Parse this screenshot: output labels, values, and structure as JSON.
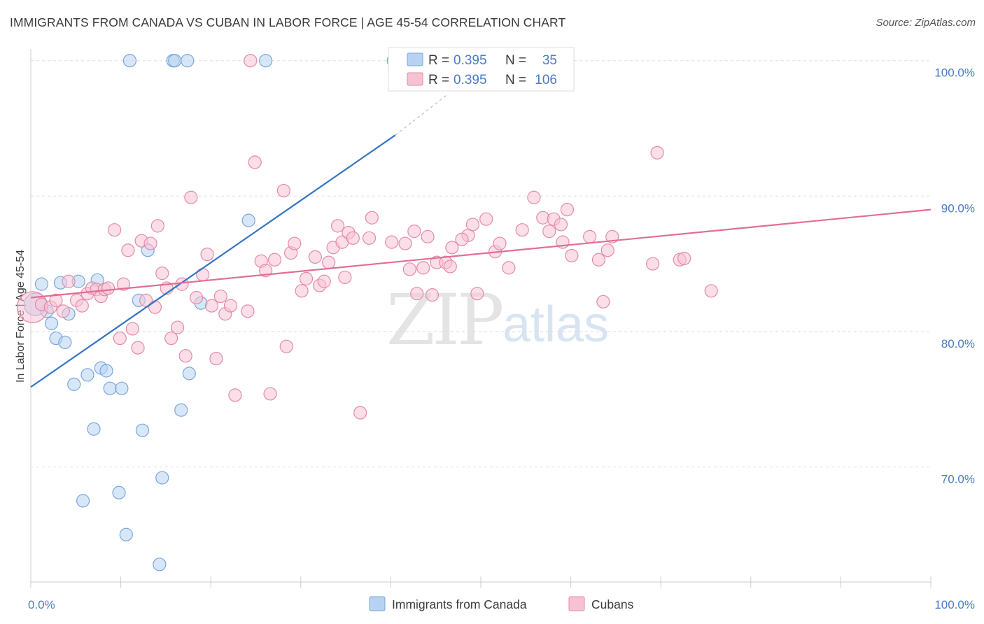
{
  "title": "IMMIGRANTS FROM CANADA VS CUBAN IN LABOR FORCE | AGE 45-54 CORRELATION CHART",
  "source": "Source: ZipAtlas.com",
  "watermark": {
    "zip": "ZIP",
    "atlas": "atlas"
  },
  "colors": {
    "blue_fill": "#b8d3f2",
    "blue_stroke": "#7aa6dc",
    "blue_line": "#3474c4",
    "pink_fill": "#f7c3d3",
    "pink_stroke": "#e58aaa",
    "pink_line": "#e26d98",
    "tick_text": "#4a7bc8",
    "grid": "#dddddd"
  },
  "legend_top": [
    {
      "r_label": "R =",
      "r_value": "0.395",
      "n_label": "N =",
      "n_value": "35",
      "series": "canada"
    },
    {
      "r_label": "R =",
      "r_value": "0.395",
      "n_label": "N =",
      "n_value": "106",
      "series": "cubans"
    }
  ],
  "chart_data": {
    "type": "scatter",
    "title": "IMMIGRANTS FROM CANADA VS CUBAN IN LABOR FORCE | AGE 45-54 CORRELATION CHART",
    "xlabel": "",
    "ylabel": "In Labor Force | Age 45-54",
    "xlim": [
      0,
      100
    ],
    "ylim": [
      61.5,
      102
    ],
    "x_tick_labels": [
      {
        "value": 0,
        "label": "0.0%"
      },
      {
        "value": 100,
        "label": "100.0%"
      }
    ],
    "y_ticks": [
      {
        "value": 70,
        "label": "70.0%"
      },
      {
        "value": 80,
        "label": "80.0%"
      },
      {
        "value": 90,
        "label": "90.0%"
      },
      {
        "value": 100,
        "label": "100.0%"
      }
    ],
    "grid": "horizontal dashed",
    "legend": "bottom-center",
    "series": [
      {
        "name": "Immigrants from Canada",
        "key": "canada",
        "r": 0.395,
        "n": 35,
        "trend": {
          "x0": 0,
          "y0": 75.9,
          "x1": 40.5,
          "y1": 94.5,
          "dash_to_x": 46.3,
          "dash_to_y": 97.5
        },
        "points": [
          [
            0.5,
            82.0,
            16
          ],
          [
            1.2,
            83.5,
            9
          ],
          [
            1.8,
            81.5,
            9
          ],
          [
            2.3,
            80.6,
            9
          ],
          [
            2.8,
            79.5,
            9
          ],
          [
            3.3,
            83.6,
            9
          ],
          [
            3.8,
            79.2,
            9
          ],
          [
            4.2,
            81.3,
            9
          ],
          [
            4.8,
            76.1,
            9
          ],
          [
            5.3,
            83.7,
            9
          ],
          [
            6.3,
            76.8,
            9
          ],
          [
            7.0,
            72.8,
            9
          ],
          [
            7.4,
            83.8,
            9
          ],
          [
            7.8,
            77.3,
            9
          ],
          [
            8.4,
            77.1,
            9
          ],
          [
            8.8,
            75.8,
            9
          ],
          [
            9.8,
            68.1,
            9
          ],
          [
            10.1,
            75.8,
            9
          ],
          [
            10.6,
            65.0,
            9
          ],
          [
            12.0,
            82.3,
            9
          ],
          [
            12.4,
            72.7,
            9
          ],
          [
            13.0,
            86.0,
            9
          ],
          [
            14.3,
            62.8,
            9
          ],
          [
            14.6,
            69.2,
            9
          ],
          [
            16.7,
            74.2,
            9
          ],
          [
            17.6,
            76.9,
            9
          ],
          [
            18.9,
            82.1,
            9
          ],
          [
            24.2,
            88.2,
            9
          ],
          [
            5.8,
            67.5,
            9
          ],
          [
            11.0,
            100.0,
            9
          ],
          [
            15.8,
            100.0,
            9
          ],
          [
            17.4,
            100.0,
            9
          ],
          [
            26.1,
            100.0,
            9
          ],
          [
            40.3,
            100.0,
            9
          ],
          [
            16.0,
            100.0,
            9
          ]
        ]
      },
      {
        "name": "Cubans",
        "key": "cubans",
        "r": 0.395,
        "n": 106,
        "trend": {
          "x0": 0,
          "y0": 82.5,
          "x1": 100,
          "y1": 89.0
        },
        "points": [
          [
            0.2,
            81.8,
            22
          ],
          [
            1.2,
            82.0,
            9
          ],
          [
            2.2,
            81.8,
            9
          ],
          [
            2.8,
            82.3,
            9
          ],
          [
            3.6,
            81.5,
            9
          ],
          [
            4.2,
            83.7,
            9
          ],
          [
            5.1,
            82.3,
            9
          ],
          [
            5.7,
            81.9,
            9
          ],
          [
            6.3,
            82.8,
            9
          ],
          [
            6.8,
            83.2,
            9
          ],
          [
            7.3,
            83.1,
            9
          ],
          [
            7.8,
            82.6,
            9
          ],
          [
            8.2,
            83.1,
            9
          ],
          [
            8.6,
            83.2,
            9
          ],
          [
            9.3,
            87.5,
            9
          ],
          [
            9.9,
            79.5,
            9
          ],
          [
            10.3,
            83.5,
            9
          ],
          [
            10.8,
            86.0,
            9
          ],
          [
            11.3,
            80.2,
            9
          ],
          [
            11.9,
            78.8,
            9
          ],
          [
            12.3,
            86.7,
            9
          ],
          [
            12.8,
            82.3,
            9
          ],
          [
            13.3,
            86.5,
            9
          ],
          [
            13.8,
            81.8,
            9
          ],
          [
            14.1,
            87.8,
            9
          ],
          [
            14.6,
            84.3,
            9
          ],
          [
            15.1,
            83.2,
            9
          ],
          [
            15.6,
            79.5,
            9
          ],
          [
            16.3,
            80.3,
            9
          ],
          [
            16.8,
            83.5,
            9
          ],
          [
            17.2,
            78.2,
            9
          ],
          [
            17.8,
            89.9,
            9
          ],
          [
            18.4,
            82.5,
            9
          ],
          [
            19.1,
            84.2,
            9
          ],
          [
            19.6,
            85.7,
            9
          ],
          [
            20.1,
            81.9,
            9
          ],
          [
            20.6,
            78.0,
            9
          ],
          [
            21.1,
            82.6,
            9
          ],
          [
            21.6,
            81.3,
            9
          ],
          [
            22.2,
            81.9,
            9
          ],
          [
            22.7,
            75.3,
            9
          ],
          [
            24.1,
            81.5,
            9
          ],
          [
            24.4,
            100.0,
            9
          ],
          [
            24.9,
            92.5,
            9
          ],
          [
            25.6,
            85.2,
            9
          ],
          [
            26.1,
            84.5,
            9
          ],
          [
            26.6,
            75.4,
            9
          ],
          [
            27.1,
            85.3,
            9
          ],
          [
            28.1,
            90.4,
            9
          ],
          [
            28.4,
            78.9,
            9
          ],
          [
            28.9,
            85.8,
            9
          ],
          [
            29.3,
            86.5,
            9
          ],
          [
            30.1,
            83.0,
            9
          ],
          [
            30.6,
            83.9,
            9
          ],
          [
            31.6,
            85.5,
            9
          ],
          [
            32.1,
            83.4,
            9
          ],
          [
            32.6,
            83.7,
            9
          ],
          [
            33.6,
            86.2,
            9
          ],
          [
            34.1,
            87.8,
            9
          ],
          [
            34.6,
            86.6,
            9
          ],
          [
            35.3,
            87.3,
            9
          ],
          [
            35.8,
            86.9,
            9
          ],
          [
            36.6,
            74.0,
            9
          ],
          [
            37.6,
            86.9,
            9
          ],
          [
            37.9,
            88.4,
            9
          ],
          [
            40.1,
            86.6,
            9
          ],
          [
            41.6,
            86.5,
            9
          ],
          [
            42.1,
            84.6,
            9
          ],
          [
            42.6,
            87.4,
            9
          ],
          [
            42.9,
            82.8,
            9
          ],
          [
            43.6,
            84.7,
            9
          ],
          [
            44.1,
            87.0,
            9
          ],
          [
            44.6,
            82.7,
            9
          ],
          [
            45.1,
            85.1,
            9
          ],
          [
            46.1,
            85.1,
            9
          ],
          [
            46.8,
            86.2,
            9
          ],
          [
            48.6,
            87.1,
            9
          ],
          [
            49.1,
            87.9,
            9
          ],
          [
            49.6,
            82.8,
            9
          ],
          [
            50.6,
            88.3,
            9
          ],
          [
            51.6,
            85.9,
            9
          ],
          [
            52.1,
            86.5,
            9
          ],
          [
            53.1,
            84.7,
            9
          ],
          [
            54.6,
            87.5,
            9
          ],
          [
            55.9,
            89.9,
            9
          ],
          [
            56.9,
            88.4,
            9
          ],
          [
            57.6,
            87.4,
            9
          ],
          [
            58.1,
            88.3,
            9
          ],
          [
            59.1,
            86.6,
            9
          ],
          [
            59.6,
            89.0,
            9
          ],
          [
            60.1,
            85.6,
            9
          ],
          [
            62.1,
            87.0,
            9
          ],
          [
            63.1,
            85.3,
            9
          ],
          [
            63.6,
            82.2,
            9
          ],
          [
            64.1,
            86.0,
            9
          ],
          [
            64.6,
            87.0,
            9
          ],
          [
            69.1,
            85.0,
            9
          ],
          [
            72.1,
            85.3,
            9
          ],
          [
            72.6,
            85.4,
            9
          ],
          [
            75.6,
            83.0,
            9
          ],
          [
            69.6,
            93.2,
            9
          ],
          [
            46.6,
            84.8,
            9
          ],
          [
            34.9,
            84.0,
            9
          ],
          [
            47.9,
            86.8,
            9
          ],
          [
            58.9,
            87.9,
            9
          ],
          [
            33.1,
            85.1,
            9
          ]
        ]
      }
    ]
  },
  "legend_bottom": [
    {
      "label": "Immigrants from Canada",
      "series": "canada"
    },
    {
      "label": "Cubans",
      "series": "cubans"
    }
  ]
}
